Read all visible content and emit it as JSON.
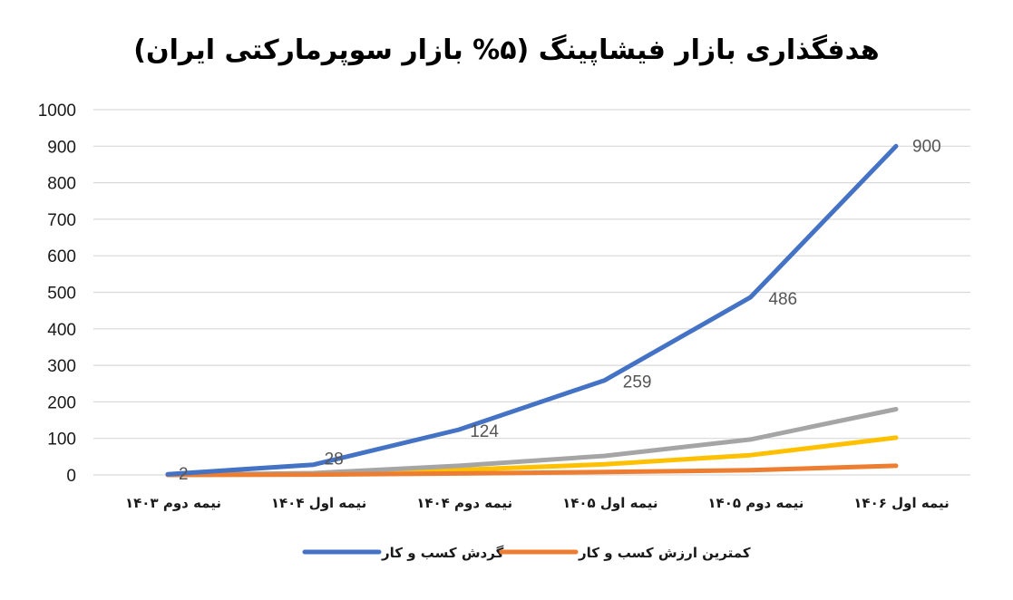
{
  "chart_data": {
    "type": "line",
    "title": "هدفگذاری بازار فیشاپینگ (۵% بازار سوپرمارکتی ایران)",
    "xlabel": "",
    "ylabel": "",
    "categories": [
      "نیمه دوم ۱۴۰۳",
      "نیمه اول ۱۴۰۴",
      "نیمه دوم ۱۴۰۴",
      "نیمه اول ۱۴۰۵",
      "نیمه دوم ۱۴۰۵",
      "نیمه اول ۱۴۰۶"
    ],
    "ylim": [
      0,
      1000
    ],
    "yticks": [
      0,
      100,
      200,
      300,
      400,
      500,
      600,
      700,
      800,
      900,
      1000
    ],
    "grid": true,
    "legend_position": "bottom",
    "series": [
      {
        "name": "گردش کسب و کار",
        "color": "#4472C4",
        "values": [
          2,
          28,
          124,
          259,
          486,
          900
        ],
        "labels": [
          "2",
          "28",
          "124",
          "259",
          "486",
          "900"
        ],
        "in_legend": true
      },
      {
        "name": "کمترین ارزش کسب و کار",
        "color": "#ED7D31",
        "values": [
          0,
          1,
          4,
          8,
          13,
          25
        ],
        "labels": null,
        "in_legend": true
      },
      {
        "color": "#A5A5A5",
        "values": [
          0,
          5,
          25,
          52,
          97,
          180
        ],
        "labels": null,
        "in_legend": false
      },
      {
        "color": "#FFC000",
        "values": [
          0,
          3,
          14,
          29,
          54,
          102
        ],
        "labels": null,
        "in_legend": false
      }
    ]
  }
}
